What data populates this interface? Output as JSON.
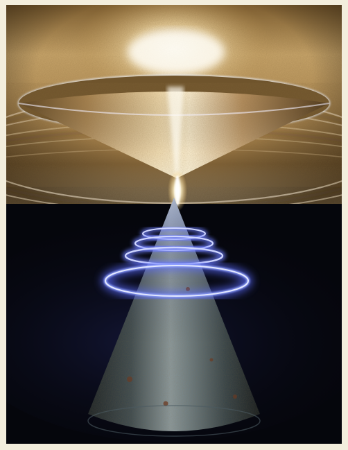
{
  "image": {
    "kind": "illustration",
    "palette": {
      "border": "#f3eedd",
      "background": "#05060c",
      "gold_light": "#fff7de",
      "gold_mid": "#c7a064",
      "gold_dark": "#5a3f1d",
      "steel_light": "#7f8f96",
      "steel_dark": "#1f2a30",
      "ring_glow": "#6d7dff",
      "ring_core": "#cfd6ff",
      "spark": "#fffbe8"
    },
    "ring_count": 4
  }
}
